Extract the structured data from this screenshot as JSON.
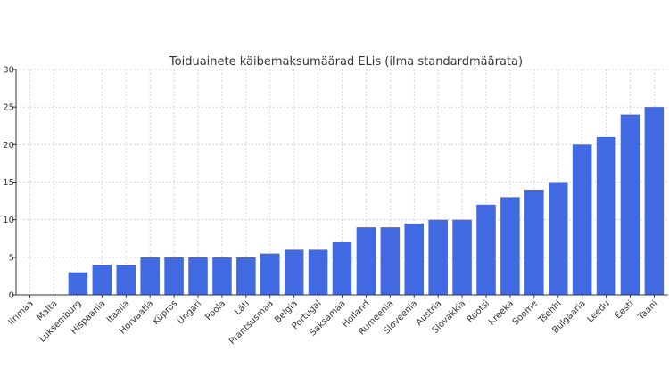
{
  "chart_data": {
    "type": "bar",
    "title": "Toiduainete käibemaksumäärad ELis (ilma standardmäärata)",
    "xlabel": "",
    "ylabel": "",
    "ylim": [
      0,
      30
    ],
    "yticks": [
      0,
      5,
      10,
      15,
      20,
      25,
      30
    ],
    "grid": true,
    "bar_color": "#4169e1",
    "categories": [
      "Iirimaa",
      "Malta",
      "Luksemburg",
      "Hispaania",
      "Itaalia",
      "Horvaatia",
      "Küpros",
      "Ungari",
      "Poola",
      "Läti",
      "Prantsusmaa",
      "Belgia",
      "Portugal",
      "Saksamaa",
      "Holland",
      "Rumeenia",
      "Sloveenia",
      "Austria",
      "Slovakkia",
      "Rootsi",
      "Kreeka",
      "Soome",
      "Tšehhi",
      "Bulgaaria",
      "Leedu",
      "Eesti",
      "Taani"
    ],
    "values": [
      0,
      0,
      3,
      4,
      4,
      5,
      5,
      5,
      5,
      5,
      5.5,
      6,
      6,
      7,
      9,
      9,
      9.5,
      10,
      10,
      12,
      13,
      14,
      15,
      20,
      21,
      24,
      25
    ]
  }
}
